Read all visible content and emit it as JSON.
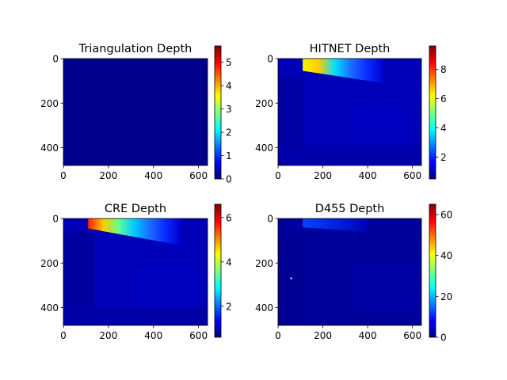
{
  "figure": {
    "background": "#ffffff"
  },
  "chart_data": [
    {
      "type": "heatmap",
      "title": "Triangulation Depth",
      "xticks": [
        0,
        200,
        400,
        600
      ],
      "yticks": [
        0,
        200,
        400
      ],
      "xlim": [
        0,
        640
      ],
      "ylim": [
        480,
        0
      ],
      "colormap": "jet",
      "colorbar": {
        "min": 0,
        "max": 5.7,
        "ticks": [
          0,
          1,
          2,
          3,
          4,
          5
        ]
      },
      "base_color": "#00008a",
      "regions": []
    },
    {
      "type": "heatmap",
      "title": "HITNET Depth",
      "xticks": [
        0,
        200,
        400,
        600
      ],
      "yticks": [
        0,
        200,
        400
      ],
      "xlim": [
        0,
        640
      ],
      "ylim": [
        480,
        0
      ],
      "colormap": "jet",
      "colorbar": {
        "min": 0.5,
        "max": 9.6,
        "ticks": [
          2,
          4,
          6,
          8
        ]
      },
      "base_color": "#0000b8",
      "regions": [
        {
          "kind": "gradient",
          "color_stops": [
            "#f4f400",
            "#ffcc00",
            "#00e0ff",
            "#1a6cff",
            "#0a2cff",
            "#0000d0"
          ],
          "x": [
            110,
            470
          ],
          "y": [
            0,
            55
          ],
          "y_right": [
            0,
            110
          ]
        },
        {
          "kind": "patch",
          "color": "#0000a0",
          "x": [
            0,
            110
          ],
          "y": [
            80,
            430
          ]
        },
        {
          "kind": "patch",
          "color": "#0000c4",
          "x": [
            330,
            560
          ],
          "y": [
            220,
            380
          ]
        },
        {
          "kind": "patch",
          "color": "#0000aa",
          "x": [
            0,
            640
          ],
          "y": [
            390,
            480
          ]
        }
      ]
    },
    {
      "type": "heatmap",
      "title": "CRE Depth",
      "xticks": [
        0,
        200,
        400,
        600
      ],
      "yticks": [
        0,
        200,
        400
      ],
      "xlim": [
        0,
        640
      ],
      "ylim": [
        480,
        0
      ],
      "colormap": "jet",
      "colorbar": {
        "min": 0.6,
        "max": 6.6,
        "ticks": [
          2,
          4,
          6
        ]
      },
      "base_color": "#0000b8",
      "regions": [
        {
          "kind": "gradient",
          "color_stops": [
            "#ff2000",
            "#ffcc00",
            "#60ff90",
            "#00c8ff",
            "#1a6cff",
            "#0a2cff",
            "#0000d0"
          ],
          "x": [
            110,
            520
          ],
          "y": [
            0,
            45
          ],
          "y_right": [
            0,
            120
          ]
        },
        {
          "kind": "patch",
          "color": "#00009c",
          "x": [
            0,
            140
          ],
          "y": [
            60,
            450
          ]
        },
        {
          "kind": "patch",
          "color": "#0000c2",
          "x": [
            320,
            600
          ],
          "y": [
            220,
            400
          ]
        },
        {
          "kind": "patch",
          "color": "#0000a6",
          "x": [
            0,
            640
          ],
          "y": [
            400,
            480
          ]
        }
      ]
    },
    {
      "type": "heatmap",
      "title": "D455 Depth",
      "xticks": [
        0,
        200,
        400,
        600
      ],
      "yticks": [
        0,
        200,
        400
      ],
      "xlim": [
        0,
        640
      ],
      "ylim": [
        480,
        0
      ],
      "colormap": "jet",
      "colorbar": {
        "min": 0,
        "max": 65,
        "ticks": [
          0,
          20,
          40,
          60
        ]
      },
      "base_color": "#00009c",
      "regions": [
        {
          "kind": "gradient",
          "color_stops": [
            "#0044ff",
            "#0022e0",
            "#0000b4"
          ],
          "x": [
            110,
            400
          ],
          "y": [
            0,
            40
          ],
          "y_right": [
            0,
            60
          ]
        },
        {
          "kind": "patch",
          "color": "#000090",
          "x": [
            0,
            120
          ],
          "y": [
            80,
            470
          ]
        },
        {
          "kind": "patch",
          "color": "#0000a4",
          "x": [
            330,
            640
          ],
          "y": [
            200,
            400
          ]
        },
        {
          "kind": "patch",
          "color": "#ffffff",
          "x": [
            55,
            62
          ],
          "y": [
            265,
            272
          ]
        }
      ]
    }
  ]
}
